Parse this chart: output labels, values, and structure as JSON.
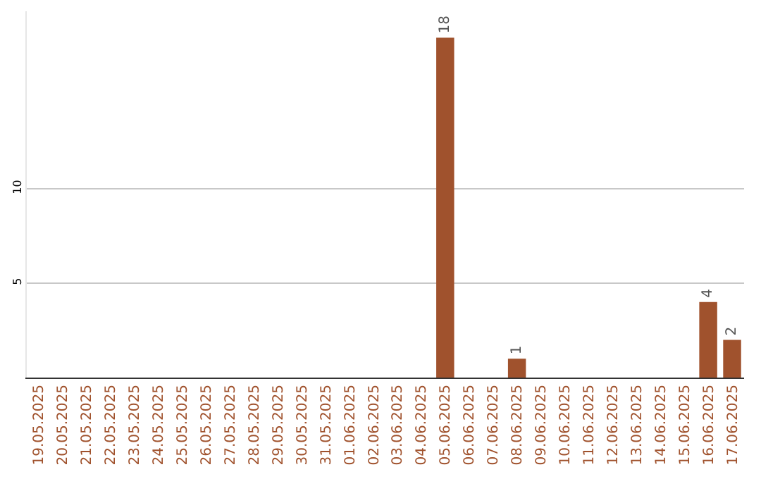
{
  "chart_data": {
    "type": "bar",
    "categories": [
      "19.05.2025",
      "20.05.2025",
      "21.05.2025",
      "22.05.2025",
      "23.05.2025",
      "24.05.2025",
      "25.05.2025",
      "26.05.2025",
      "27.05.2025",
      "28.05.2025",
      "29.05.2025",
      "30.05.2025",
      "31.05.2025",
      "01.06.2025",
      "02.06.2025",
      "03.06.2025",
      "04.06.2025",
      "05.06.2025",
      "06.06.2025",
      "07.06.2025",
      "08.06.2025",
      "09.06.2025",
      "10.06.2025",
      "11.06.2025",
      "12.06.2025",
      "13.06.2025",
      "14.06.2025",
      "15.06.2025",
      "16.06.2025",
      "17.06.2025"
    ],
    "values": [
      0,
      0,
      0,
      0,
      0,
      0,
      0,
      0,
      0,
      0,
      0,
      0,
      0,
      0,
      0,
      0,
      0,
      18,
      0,
      0,
      1,
      0,
      0,
      0,
      0,
      0,
      0,
      0,
      4,
      2
    ],
    "value_labels": [
      null,
      null,
      null,
      null,
      null,
      null,
      null,
      null,
      null,
      null,
      null,
      null,
      null,
      null,
      null,
      null,
      null,
      "18",
      null,
      null,
      "1",
      null,
      null,
      null,
      null,
      null,
      null,
      null,
      "4",
      "2"
    ],
    "color": "#a0522d",
    "ylim": [
      0,
      19.4
    ],
    "yticks": [
      5,
      10
    ],
    "grid": "y"
  }
}
